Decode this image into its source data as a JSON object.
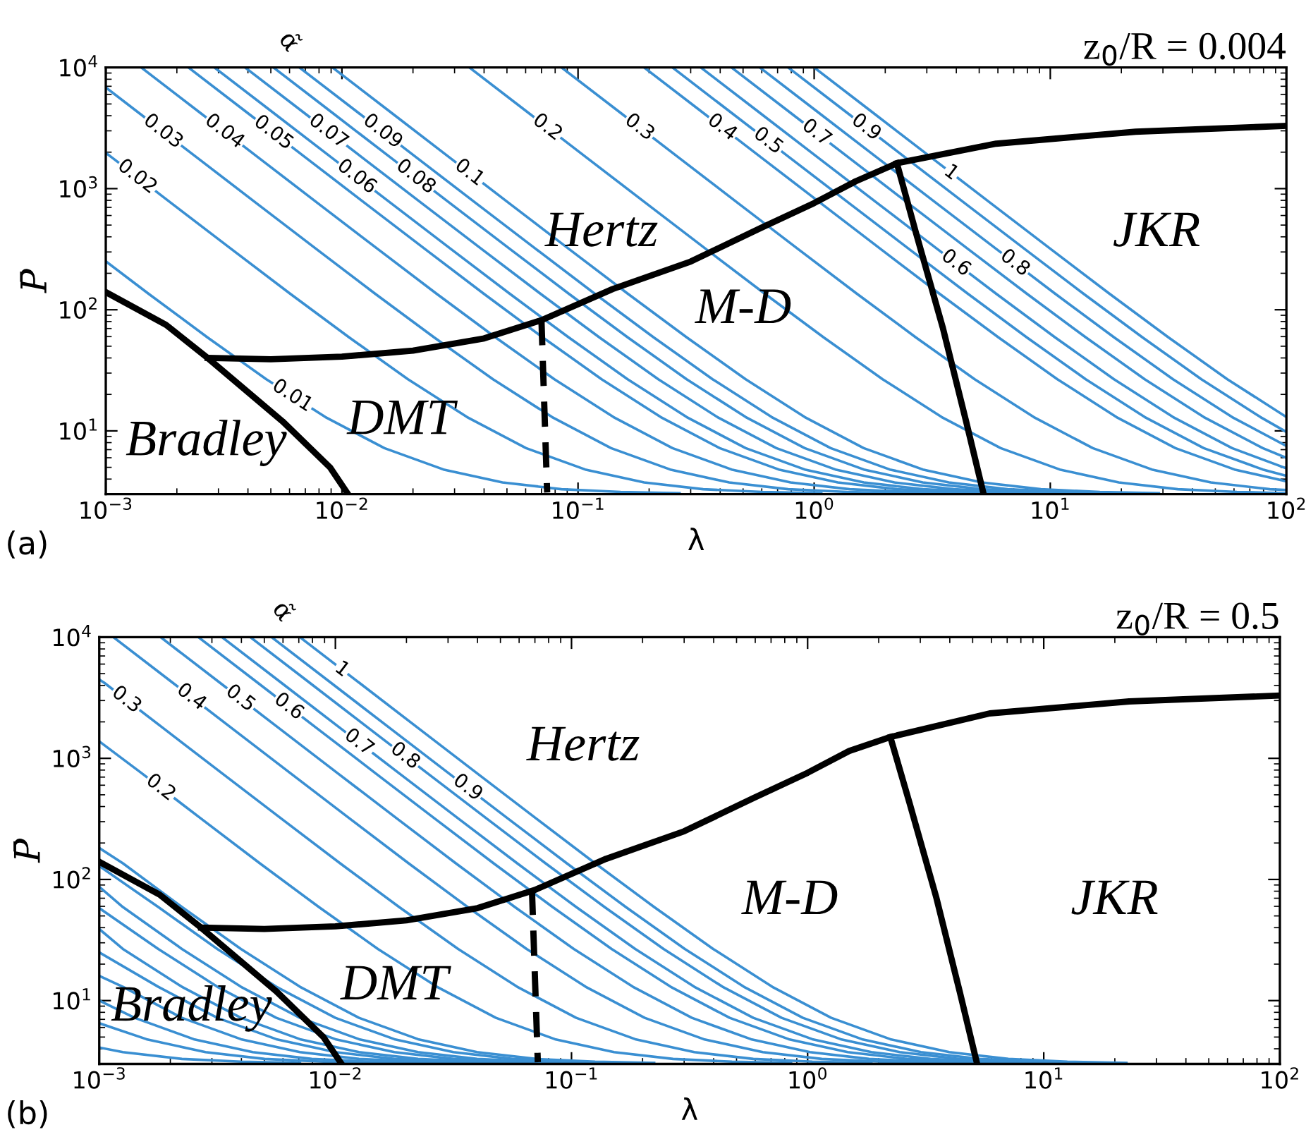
{
  "chart_data": [
    {
      "type": "line",
      "title": "z$_{0}$/R = 0.004",
      "xlabel": "λ",
      "ylabel": "P̄",
      "log": "xy",
      "xlim": [
        0.001,
        100
      ],
      "ylim": [
        3,
        10000
      ],
      "xticks": [
        {
          "value": 0.001,
          "label": "10$^{−3}$"
        },
        {
          "value": 0.01,
          "label": "10$^{−2}$"
        },
        {
          "value": 0.1,
          "label": "10$^{−1}$"
        },
        {
          "value": 1,
          "label": "10$^{0}$"
        },
        {
          "value": 10,
          "label": "10$^{1}$"
        },
        {
          "value": 100,
          "label": "10$^{2}$"
        }
      ],
      "yticks": [
        {
          "value": 10,
          "label": "10$^{1}$"
        },
        {
          "value": 100,
          "label": "10$^{2}$"
        },
        {
          "value": 1000,
          "label": "10$^{3}$"
        },
        {
          "value": 10000,
          "label": "10$^{4}$"
        }
      ],
      "annotations": [
        "α̃",
        "Bradley",
        "DMT",
        "Hertz",
        "M-D",
        "JKR",
        "(a)"
      ],
      "series": [
        {
          "name": "0.01",
          "color": "#3a8fd2",
          "x": [
            0.001,
            0.001514,
            0.002692,
            0.004786,
            0.008511,
            0.01514,
            0.02692,
            0.04786,
            0.08511,
            0.1514,
            0.2692
          ],
          "values": [
            251,
            136,
            59.2,
            26.7,
            13.0,
            7.2,
            4.8,
            3.75,
            3.3,
            3.13,
            3.06
          ]
        },
        {
          "name": "0.02",
          "color": "#3a8fd2",
          "x": [
            0.001,
            0.001072,
            0.001905,
            0.003388,
            0.006026,
            0.01072,
            0.01905,
            0.03388,
            0.06026,
            0.1072,
            0.1905,
            0.3388,
            0.6026,
            1.072
          ],
          "values": [
            1975,
            1781,
            753,
            319,
            136,
            59.2,
            26.7,
            13.0,
            7.2,
            4.8,
            3.75,
            3.3,
            3.13,
            3.06
          ]
        },
        {
          "name": "0.03",
          "color": "#3a8fd2",
          "x": [
            0.001,
            0.00138,
            0.002455,
            0.004365,
            0.007762,
            0.0138,
            0.02455,
            0.04365,
            0.07762,
            0.138,
            0.2455,
            0.4365,
            0.7762,
            1.38,
            2.455
          ],
          "values": [
            6840,
            4220,
            1781,
            753,
            319,
            136,
            59.2,
            26.7,
            13.0,
            7.2,
            4.8,
            3.75,
            3.3,
            3.13,
            3.06
          ]
        },
        {
          "name": "0.04",
          "color": "#3a8fd2",
          "x": [
            0.001413,
            0.002512,
            0.004467,
            0.007943,
            0.01413,
            0.02512,
            0.04467,
            0.07943,
            0.1413,
            0.2512,
            0.4467,
            0.7943,
            1.413,
            2.512,
            4.467
          ],
          "values": [
            10000,
            4220,
            1781,
            753,
            319,
            136,
            59.2,
            26.7,
            13.0,
            7.2,
            4.8,
            3.75,
            3.3,
            3.13,
            3.06
          ]
        },
        {
          "name": "0.05",
          "color": "#3a8fd2",
          "x": [
            0.002239,
            0.003981,
            0.007079,
            0.01259,
            0.02239,
            0.03981,
            0.07079,
            0.1259,
            0.2239,
            0.3981,
            0.7079,
            1.259,
            2.239,
            3.981,
            7.079
          ],
          "values": [
            10000,
            4220,
            1781,
            753,
            319,
            136,
            59.2,
            26.7,
            13.0,
            7.2,
            4.8,
            3.75,
            3.3,
            3.13,
            3.06
          ]
        },
        {
          "name": "0.06",
          "color": "#3a8fd2",
          "x": [
            0.002884,
            0.005129,
            0.00912,
            0.01622,
            0.02884,
            0.05129,
            0.0912,
            0.1622,
            0.2884,
            0.5129,
            0.912,
            1.622,
            2.884,
            5.129,
            9.12
          ],
          "values": [
            10000,
            4220,
            1781,
            753,
            319,
            136,
            59.2,
            26.7,
            13.0,
            7.2,
            4.8,
            3.75,
            3.3,
            3.13,
            3.06
          ]
        },
        {
          "name": "0.07",
          "color": "#3a8fd2",
          "x": [
            0.00389,
            0.006918,
            0.0123,
            0.02188,
            0.0389,
            0.06918,
            0.123,
            0.2188,
            0.389,
            0.6918,
            1.23,
            2.188,
            3.89,
            6.918,
            12.3
          ],
          "values": [
            10000,
            4220,
            1781,
            753,
            319,
            136,
            59.2,
            26.7,
            13.0,
            7.2,
            4.8,
            3.75,
            3.3,
            3.13,
            3.06
          ]
        },
        {
          "name": "0.08",
          "color": "#3a8fd2",
          "x": [
            0.005129,
            0.00912,
            0.01622,
            0.02884,
            0.05129,
            0.0912,
            0.1622,
            0.2884,
            0.5129,
            0.912,
            1.622,
            2.884,
            5.129,
            9.12,
            16.22
          ],
          "values": [
            10000,
            4220,
            1781,
            753,
            319,
            136,
            59.2,
            26.7,
            13.0,
            7.2,
            4.8,
            3.75,
            3.3,
            3.13,
            3.06
          ]
        },
        {
          "name": "0.09",
          "color": "#3a8fd2",
          "x": [
            0.006607,
            0.01175,
            0.02089,
            0.03715,
            0.06607,
            0.1175,
            0.2089,
            0.3715,
            0.6607,
            1.175,
            2.089,
            3.715,
            6.607,
            11.75,
            20.89
          ],
          "values": [
            10000,
            4220,
            1781,
            753,
            319,
            136,
            59.2,
            26.7,
            13.0,
            7.2,
            4.8,
            3.75,
            3.3,
            3.13,
            3.06
          ]
        },
        {
          "name": "0.1",
          "color": "#3a8fd2",
          "x": [
            0.00912,
            0.01622,
            0.02884,
            0.05129,
            0.0912,
            0.1622,
            0.2884,
            0.5129,
            0.912,
            1.622,
            2.884,
            5.129,
            9.12,
            16.22,
            28.84
          ],
          "values": [
            10000,
            4220,
            1781,
            753,
            319,
            136,
            59.2,
            26.7,
            13.0,
            7.2,
            4.8,
            3.75,
            3.3,
            3.13,
            3.06
          ]
        },
        {
          "name": "0.2",
          "color": "#3a8fd2",
          "x": [
            0.03467,
            0.06166,
            0.1096,
            0.195,
            0.3467,
            0.6166,
            1.096,
            1.95,
            3.467,
            6.166,
            10.96,
            19.5,
            34.67,
            61.66,
            100
          ],
          "values": [
            10000,
            4220,
            1781,
            753,
            319,
            136,
            59.2,
            26.7,
            13.0,
            7.2,
            4.8,
            3.75,
            3.3,
            3.13,
            3.06
          ]
        },
        {
          "name": "0.3",
          "color": "#3a8fd2",
          "x": [
            0.08511,
            0.1514,
            0.2692,
            0.4786,
            0.8511,
            1.514,
            2.692,
            4.786,
            8.511,
            15.14,
            26.92,
            47.86,
            85.11,
            100
          ],
          "values": [
            10000,
            4220,
            1781,
            753,
            319,
            136,
            59.2,
            26.7,
            13.0,
            7.2,
            4.8,
            3.75,
            3.3,
            3.25
          ]
        },
        {
          "name": "0.4",
          "color": "#3a8fd2",
          "x": [
            0.1905,
            0.3388,
            0.6026,
            1.072,
            1.905,
            3.388,
            6.026,
            10.72,
            19.05,
            33.88,
            60.26,
            100
          ],
          "values": [
            10000,
            4220,
            1781,
            753,
            319,
            136,
            59.2,
            26.7,
            13.0,
            7.2,
            4.8,
            3.83
          ]
        },
        {
          "name": "0.5",
          "color": "#3a8fd2",
          "x": [
            0.2512,
            0.4467,
            0.7943,
            1.413,
            2.512,
            4.467,
            7.943,
            14.13,
            25.12,
            44.67,
            79.43,
            100
          ],
          "values": [
            10000,
            4220,
            1781,
            753,
            319,
            136,
            59.2,
            26.7,
            13.0,
            7.2,
            4.8,
            4.26
          ]
        },
        {
          "name": "0.6",
          "color": "#3a8fd2",
          "x": [
            0.3311,
            0.5888,
            1.047,
            1.862,
            3.311,
            5.888,
            10.47,
            18.62,
            33.11,
            58.88,
            100
          ],
          "values": [
            10000,
            4220,
            1781,
            753,
            319,
            136,
            59.2,
            26.7,
            13.0,
            7.2,
            4.9
          ]
        },
        {
          "name": "0.7",
          "color": "#3a8fd2",
          "x": [
            0.4467,
            0.7943,
            1.413,
            2.512,
            4.467,
            7.943,
            14.13,
            25.12,
            44.67,
            79.43,
            100
          ],
          "values": [
            10000,
            4220,
            1781,
            753,
            319,
            136,
            59.2,
            26.7,
            13.0,
            7.2,
            5.99
          ]
        },
        {
          "name": "0.8",
          "color": "#3a8fd2",
          "x": [
            0.5888,
            1.047,
            1.862,
            3.311,
            5.888,
            10.47,
            18.62,
            33.11,
            58.88,
            100
          ],
          "values": [
            10000,
            4220,
            1781,
            753,
            319,
            136,
            59.2,
            26.7,
            13.0,
            7.5
          ]
        },
        {
          "name": "0.9",
          "color": "#3a8fd2",
          "x": [
            0.7762,
            1.38,
            2.455,
            4.365,
            7.762,
            13.8,
            24.55,
            43.65,
            77.62,
            100
          ],
          "values": [
            10000,
            4220,
            1781,
            753,
            319,
            136,
            59.2,
            26.7,
            13.0,
            9.8
          ]
        },
        {
          "name": "1",
          "color": "#3a8fd2",
          "x": [
            1,
            1.778,
            3.162,
            5.623,
            10,
            17.78,
            31.62,
            56.23,
            100
          ],
          "values": [
            10000,
            4220,
            1781,
            753,
            319,
            136,
            59.2,
            26.7,
            13.0
          ]
        },
        {
          "color": "#000000",
          "x": [
            0.001,
            0.0018,
            0.0027,
            0.0056,
            0.0089,
            0.0105
          ],
          "values": [
            140,
            75,
            40,
            12,
            5,
            3.1
          ]
        },
        {
          "color": "#000000",
          "x": [
            0.0027,
            0.005,
            0.01,
            0.02,
            0.04,
            0.07,
            0.14,
            0.3,
            0.59,
            1,
            1.5,
            2.24,
            5.9,
            23,
            100
          ],
          "values": [
            40,
            39,
            41,
            46,
            58,
            82,
            148,
            250,
            470,
            760,
            1150,
            1620,
            2350,
            2950,
            3300
          ]
        },
        {
          "color": "#000000",
          "line_style": "dashed",
          "x": [
            0.07,
            0.074
          ],
          "values": [
            82,
            3.1
          ]
        },
        {
          "color": "#000000",
          "x": [
            2.24,
            2.7,
            3.5,
            4.4,
            5.2
          ],
          "values": [
            1620,
            430,
            72,
            12,
            3.1
          ]
        }
      ]
    },
    {
      "type": "line",
      "title": "z$_{0}$/R = 0.5",
      "xlabel": "λ",
      "ylabel": "P̄",
      "log": "xy",
      "xlim": [
        0.001,
        100
      ],
      "ylim": [
        3,
        10000
      ],
      "xticks": [
        {
          "value": 0.001,
          "label": "10$^{−3}$"
        },
        {
          "value": 0.01,
          "label": "10$^{−2}$"
        },
        {
          "value": 0.1,
          "label": "10$^{−1}$"
        },
        {
          "value": 1,
          "label": "10$^{0}$"
        },
        {
          "value": 10,
          "label": "10$^{1}$"
        },
        {
          "value": 100,
          "label": "10$^{2}$"
        }
      ],
      "yticks": [
        {
          "value": 10,
          "label": "10$^{1}$"
        },
        {
          "value": 100,
          "label": "10$^{2}$"
        },
        {
          "value": 1000,
          "label": "10$^{3}$"
        },
        {
          "value": 10000,
          "label": "10$^{4}$"
        }
      ],
      "annotations": [
        "α̃",
        "Bradley",
        "DMT",
        "Hertz",
        "M-D",
        "JKR",
        "(b)"
      ],
      "series": [
        {
          "color": "#3a8fd2",
          "x": [
            0.001,
            0.001259,
            0.002239,
            0.003981,
            0.007079
          ],
          "values": [
            4.1,
            3.75,
            3.3,
            3.13,
            3.06
          ]
        },
        {
          "color": "#3a8fd2",
          "x": [
            0.001,
            0.001585,
            0.002818,
            0.005012,
            0.008913,
            0.01585
          ],
          "values": [
            6.5,
            4.8,
            3.75,
            3.3,
            3.13,
            3.06
          ]
        },
        {
          "color": "#3a8fd2",
          "x": [
            0.001,
            0.001413,
            0.002512,
            0.004467,
            0.007943,
            0.01413,
            0.02512
          ],
          "values": [
            10,
            7.2,
            4.8,
            3.75,
            3.3,
            3.13,
            3.06
          ]
        },
        {
          "color": "#3a8fd2",
          "x": [
            0.001,
            0.001259,
            0.002239,
            0.003981,
            0.007079,
            0.01259,
            0.02239,
            0.03981
          ],
          "values": [
            16,
            13.0,
            7.2,
            4.8,
            3.75,
            3.3,
            3.13,
            3.06
          ]
        },
        {
          "color": "#3a8fd2",
          "x": [
            0.001,
            0.001778,
            0.003162,
            0.005623,
            0.01,
            0.01778,
            0.03162,
            0.05623
          ],
          "values": [
            25,
            13.0,
            7.2,
            4.8,
            3.75,
            3.3,
            3.13,
            3.06
          ]
        },
        {
          "color": "#3a8fd2",
          "x": [
            0.001,
            0.001259,
            0.002239,
            0.003981,
            0.007079,
            0.01259,
            0.02239,
            0.03981,
            0.07079
          ],
          "values": [
            39,
            26.7,
            13.0,
            7.2,
            4.8,
            3.75,
            3.3,
            3.13,
            3.06
          ]
        },
        {
          "color": "#3a8fd2",
          "x": [
            0.001,
            0.001778,
            0.003162,
            0.005623,
            0.01,
            0.01778,
            0.03162,
            0.05623,
            0.1
          ],
          "values": [
            58,
            26.7,
            13.0,
            7.2,
            4.8,
            3.75,
            3.3,
            3.13,
            3.06
          ]
        },
        {
          "color": "#3a8fd2",
          "x": [
            0.001,
            0.001259,
            0.002239,
            0.003981,
            0.007079,
            0.01259,
            0.02239,
            0.03981,
            0.07079,
            0.1259
          ],
          "values": [
            87,
            59.2,
            26.7,
            13.0,
            7.2,
            4.8,
            3.75,
            3.3,
            3.13,
            3.06
          ]
        },
        {
          "color": "#3a8fd2",
          "x": [
            0.001,
            0.001778,
            0.003162,
            0.005623,
            0.01,
            0.01778,
            0.03162,
            0.05623,
            0.1,
            0.1778
          ],
          "values": [
            129,
            59.2,
            26.7,
            13.0,
            7.2,
            4.8,
            3.75,
            3.3,
            3.13,
            3.06
          ]
        },
        {
          "color": "#3a8fd2",
          "x": [
            0.001,
            0.001259,
            0.002239,
            0.003981,
            0.007079,
            0.01259,
            0.02239,
            0.03981,
            0.07079,
            0.1259,
            0.2239
          ],
          "values": [
            182,
            136,
            59.2,
            26.7,
            13.0,
            7.2,
            4.8,
            3.75,
            3.3,
            3.13,
            3.06
          ]
        },
        {
          "name": "0.2",
          "color": "#3a8fd2",
          "x": [
            0.001,
            0.001514,
            0.002692,
            0.004786,
            0.008511,
            0.01514,
            0.02692,
            0.04786,
            0.08511,
            0.1514,
            0.2692,
            0.4786,
            0.8511
          ],
          "values": [
            1380,
            753,
            319,
            136,
            59.2,
            26.7,
            13.0,
            7.2,
            4.8,
            3.75,
            3.3,
            3.13,
            3.06
          ]
        },
        {
          "name": "0.3",
          "color": "#3a8fd2",
          "x": [
            0.001,
            0.001047,
            0.001862,
            0.003311,
            0.005888,
            0.01047,
            0.01862,
            0.03311,
            0.05888,
            0.1047,
            0.1862,
            0.3311,
            0.5888,
            1.047,
            1.862
          ],
          "values": [
            4470,
            4220,
            1781,
            753,
            319,
            136,
            59.2,
            26.7,
            13.0,
            7.2,
            4.8,
            3.75,
            3.3,
            3.13,
            3.06
          ]
        },
        {
          "name": "0.4",
          "color": "#3a8fd2",
          "x": [
            0.001148,
            0.002042,
            0.003631,
            0.006457,
            0.01148,
            0.02042,
            0.03631,
            0.06457,
            0.1148,
            0.2042,
            0.3631,
            0.6457,
            1.148,
            2.042,
            3.631
          ],
          "values": [
            10000,
            4220,
            1781,
            753,
            319,
            136,
            59.2,
            26.7,
            13.0,
            7.2,
            4.8,
            3.75,
            3.3,
            3.13,
            3.06
          ]
        },
        {
          "name": "0.5",
          "color": "#3a8fd2",
          "x": [
            0.00182,
            0.003236,
            0.005754,
            0.01023,
            0.0182,
            0.03236,
            0.05754,
            0.1023,
            0.182,
            0.3236,
            0.5754,
            1.023,
            1.82,
            3.236,
            5.754
          ],
          "values": [
            10000,
            4220,
            1781,
            753,
            319,
            136,
            59.2,
            26.7,
            13.0,
            7.2,
            4.8,
            3.75,
            3.3,
            3.13,
            3.06
          ]
        },
        {
          "name": "0.6",
          "color": "#3a8fd2",
          "x": [
            0.00263,
            0.004677,
            0.008318,
            0.01479,
            0.0263,
            0.04677,
            0.08318,
            0.1479,
            0.263,
            0.4677,
            0.8318,
            1.479,
            2.63,
            4.677,
            8.318
          ],
          "values": [
            10000,
            4220,
            1781,
            753,
            319,
            136,
            59.2,
            26.7,
            13.0,
            7.2,
            4.8,
            3.75,
            3.3,
            3.13,
            3.06
          ]
        },
        {
          "name": "0.7",
          "color": "#3a8fd2",
          "x": [
            0.003311,
            0.005888,
            0.01047,
            0.01862,
            0.03311,
            0.05888,
            0.1047,
            0.1862,
            0.3311,
            0.5888,
            1.047,
            1.862,
            3.311,
            5.888,
            10.47
          ],
          "values": [
            10000,
            4220,
            1781,
            753,
            319,
            136,
            59.2,
            26.7,
            13.0,
            7.2,
            4.8,
            3.75,
            3.3,
            3.13,
            3.06
          ]
        },
        {
          "name": "0.8",
          "color": "#3a8fd2",
          "x": [
            0.004365,
            0.007762,
            0.0138,
            0.02455,
            0.04365,
            0.07762,
            0.138,
            0.2455,
            0.4365,
            0.7762,
            1.38,
            2.455,
            4.365,
            7.762,
            13.8
          ],
          "values": [
            10000,
            4220,
            1781,
            753,
            319,
            136,
            59.2,
            26.7,
            13.0,
            7.2,
            4.8,
            3.75,
            3.3,
            3.13,
            3.06
          ]
        },
        {
          "name": "0.9",
          "color": "#3a8fd2",
          "x": [
            0.00537,
            0.00955,
            0.01698,
            0.0302,
            0.0537,
            0.0955,
            0.1698,
            0.302,
            0.537,
            0.955,
            1.698,
            3.02,
            5.37,
            9.55,
            16.98
          ],
          "values": [
            10000,
            4220,
            1781,
            753,
            319,
            136,
            59.2,
            26.7,
            13.0,
            7.2,
            4.8,
            3.75,
            3.3,
            3.13,
            3.06
          ]
        },
        {
          "name": "1",
          "color": "#3a8fd2",
          "x": [
            0.007079,
            0.01259,
            0.02239,
            0.03981,
            0.07079,
            0.1259,
            0.2239,
            0.3981,
            0.7079,
            1.259,
            2.239,
            3.981,
            7.079,
            12.59,
            22.39
          ],
          "values": [
            10000,
            4220,
            1781,
            753,
            319,
            136,
            59.2,
            26.7,
            13.0,
            7.2,
            4.8,
            3.75,
            3.3,
            3.13,
            3.06
          ]
        },
        {
          "color": "#000000",
          "x": [
            0.001,
            0.0018,
            0.0027,
            0.0056,
            0.0089,
            0.0105
          ],
          "values": [
            140,
            75,
            40,
            12,
            5,
            3.1
          ]
        },
        {
          "color": "#000000",
          "x": [
            0.0027,
            0.005,
            0.01,
            0.02,
            0.04,
            0.07,
            0.14,
            0.3,
            0.59,
            1,
            1.5,
            2.24,
            5.9,
            23,
            100
          ],
          "values": [
            40,
            39,
            41,
            46,
            58,
            82,
            148,
            250,
            470,
            760,
            1150,
            1500,
            2350,
            2950,
            3300
          ]
        },
        {
          "color": "#000000",
          "line_style": "dashed",
          "x": [
            0.068,
            0.072
          ],
          "values": [
            82,
            3.1
          ]
        },
        {
          "color": "#000000",
          "x": [
            2.24,
            2.7,
            3.5,
            4.4,
            5.2
          ],
          "values": [
            1500,
            430,
            72,
            12,
            3.1
          ]
        }
      ]
    }
  ]
}
